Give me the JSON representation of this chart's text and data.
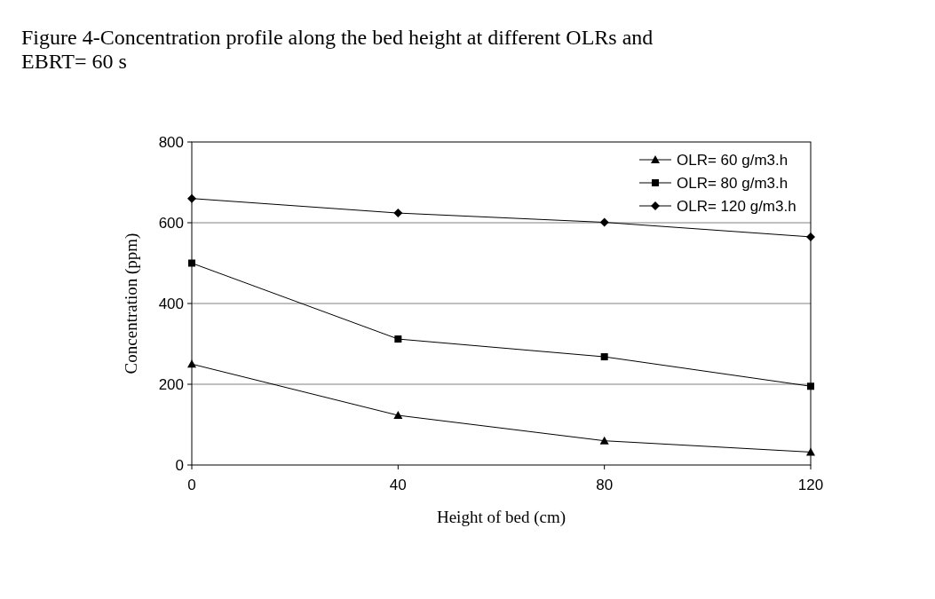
{
  "chart_data": {
    "type": "line",
    "title": "Figure 4-Concentration profile along the bed height at different OLRs and EBRT= 60 s",
    "xlabel": "Height of bed (cm)",
    "ylabel": "Concentration (ppm)",
    "x": [
      0,
      40,
      80,
      120
    ],
    "series": [
      {
        "name": "OLR= 60 g/m3.h",
        "color": "#000000",
        "marker": "triangle",
        "values": [
          250,
          123,
          60,
          32
        ]
      },
      {
        "name": "OLR= 80 g/m3.h",
        "color": "#000000",
        "marker": "square",
        "values": [
          500,
          312,
          268,
          195
        ]
      },
      {
        "name": "OLR= 120 g/m3.h",
        "color": "#000000",
        "marker": "diamond",
        "values": [
          660,
          624,
          601,
          565
        ]
      }
    ],
    "xlim": [
      0,
      120
    ],
    "xticks": [
      0,
      40,
      80,
      120
    ],
    "ylim": [
      0,
      800
    ],
    "yticks": [
      0,
      200,
      400,
      600,
      800
    ],
    "grid": "y",
    "legend": "top right",
    "line_style": "solid"
  }
}
